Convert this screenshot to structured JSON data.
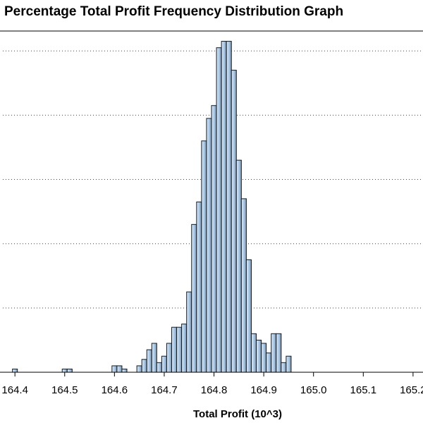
{
  "chart_data": {
    "type": "bar",
    "title": "Percentage Total Profit Frequency Distribution Graph",
    "xlabel": "Total Profit (10^3)",
    "ylabel": "",
    "xlim": [
      164.37,
      165.22
    ],
    "ylim": [
      0,
      5.2
    ],
    "grid": true,
    "bar_color": "#a9c6e2",
    "bar_edge_color": "#1a1a1a",
    "bin_width": 0.01,
    "x_ticks": [
      {
        "value": 164.4,
        "label": "164.4"
      },
      {
        "value": 164.5,
        "label": "164.5"
      },
      {
        "value": 164.6,
        "label": "164.6"
      },
      {
        "value": 164.7,
        "label": "164.7"
      },
      {
        "value": 164.8,
        "label": "164.8"
      },
      {
        "value": 164.9,
        "label": "164.9"
      },
      {
        "value": 165.0,
        "label": "165.0"
      },
      {
        "value": 165.1,
        "label": "165.1"
      },
      {
        "value": 165.2,
        "label": "165.2"
      }
    ],
    "y_gridlines": [
      1,
      2,
      3,
      4,
      5
    ],
    "x": [
      164.4,
      164.5,
      164.51,
      164.6,
      164.61,
      164.62,
      164.65,
      164.66,
      164.67,
      164.68,
      164.69,
      164.7,
      164.71,
      164.72,
      164.73,
      164.74,
      164.75,
      164.76,
      164.77,
      164.78,
      164.79,
      164.8,
      164.81,
      164.82,
      164.83,
      164.84,
      164.85,
      164.86,
      164.87,
      164.88,
      164.89,
      164.9,
      164.91,
      164.92,
      164.93,
      164.94,
      164.95,
      164.96,
      164.97,
      164.98,
      164.99,
      165.0,
      165.01,
      165.02,
      165.03,
      165.04,
      165.05,
      165.06,
      165.07,
      165.08,
      165.09,
      165.1,
      165.11,
      165.12,
      165.13,
      165.14,
      165.15,
      165.16,
      165.17,
      165.18,
      165.19,
      165.2
    ],
    "values": [
      0.05,
      0.05,
      0.05,
      0.1,
      0.1,
      0.05,
      0.1,
      0.2,
      0.35,
      0.45,
      0.15,
      0.25,
      0.45,
      0.7,
      0.7,
      0.75,
      1.25,
      2.3,
      2.65,
      3.6,
      3.95,
      4.15,
      5.05,
      5.15,
      5.15,
      4.7,
      3.3,
      2.7,
      1.75,
      0.6,
      0.5,
      0.45,
      0.3,
      0.6,
      0.6,
      0.15,
      0.25,
      0.0,
      0.0,
      0.0,
      0.0,
      0.0,
      0.0,
      0.0,
      0.0,
      0.0,
      0.0,
      0.0,
      0.0,
      0.0,
      0.0,
      0.0,
      0.0,
      0.0,
      0.0,
      0.0,
      0.0,
      0.0,
      0.0,
      0.0,
      0.0,
      0.0
    ]
  }
}
